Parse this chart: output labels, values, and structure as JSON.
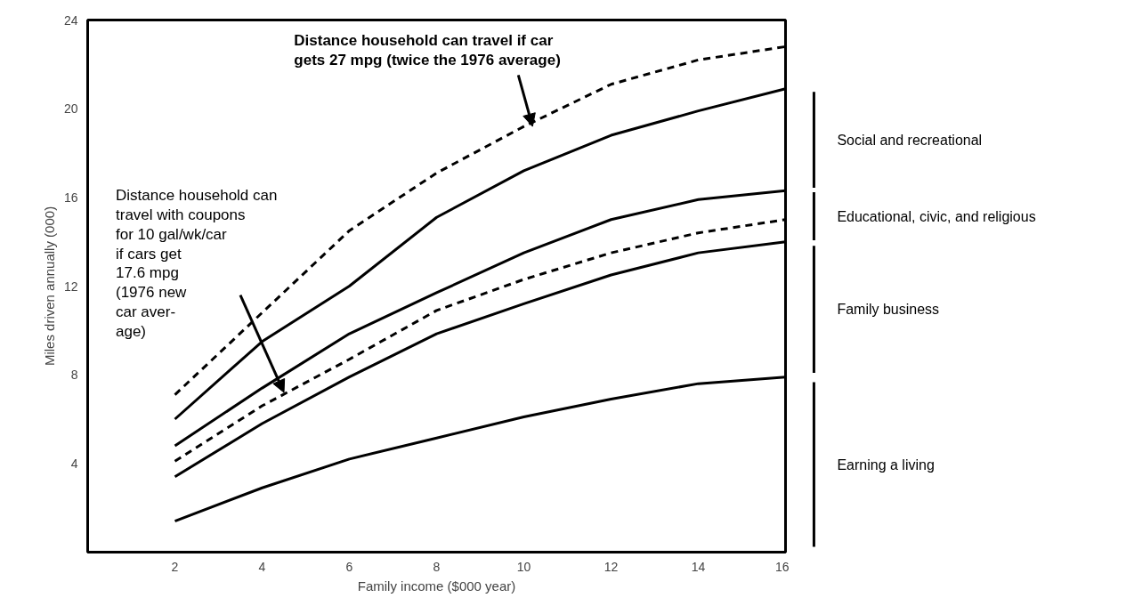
{
  "chart_data": {
    "type": "line",
    "xlabel": "Family income ($000 year)",
    "ylabel": "Miles driven annually (000)",
    "x": [
      2,
      4,
      6,
      8,
      10,
      12,
      14,
      16
    ],
    "series": [
      {
        "color": "#000000",
        "line_style": "dashed",
        "values": [
          7.1,
          10.8,
          14.5,
          17.1,
          19.2,
          21.1,
          22.2,
          22.8
        ]
      },
      {
        "color": "#000000",
        "line_style": "solid",
        "values": [
          6.0,
          9.5,
          12.0,
          15.1,
          17.2,
          18.8,
          19.9,
          20.9
        ]
      },
      {
        "color": "#000000",
        "line_style": "solid",
        "values": [
          4.8,
          7.4,
          9.85,
          11.7,
          13.5,
          15.0,
          15.9,
          16.3
        ]
      },
      {
        "color": "#000000",
        "line_style": "dashed",
        "values": [
          4.1,
          6.6,
          8.7,
          10.9,
          12.3,
          13.5,
          14.4,
          15.0
        ]
      },
      {
        "color": "#000000",
        "line_style": "solid",
        "values": [
          3.4,
          5.8,
          7.9,
          9.85,
          11.2,
          12.5,
          13.5,
          14.0
        ]
      },
      {
        "color": "#000000",
        "line_style": "solid",
        "values": [
          1.4,
          2.9,
          4.2,
          5.15,
          6.1,
          6.9,
          7.6,
          7.9
        ]
      }
    ],
    "xlim": [
      0,
      16
    ],
    "ylim": [
      0,
      24
    ],
    "xticks": [
      2,
      4,
      6,
      8,
      10,
      12,
      14,
      16
    ],
    "yticks": [
      4,
      8,
      12,
      16,
      20,
      24
    ],
    "grid": false,
    "annotations": [
      {
        "text": "Distance household can travel if car\ngets 27 mpg (twice the 1976 average)",
        "x": 10.2,
        "y": 19.2
      },
      {
        "text": "Distance household can\ntravel with coupons\nfor 10 gal/wk/car\nif cars get\n17.6 mpg\n(1976 new\ncar aver-\nage)",
        "x": 4.5,
        "y": 7.2
      },
      "Social and recreational",
      "Educational, civic, and religious",
      "Family business",
      "Earning a living"
    ]
  }
}
